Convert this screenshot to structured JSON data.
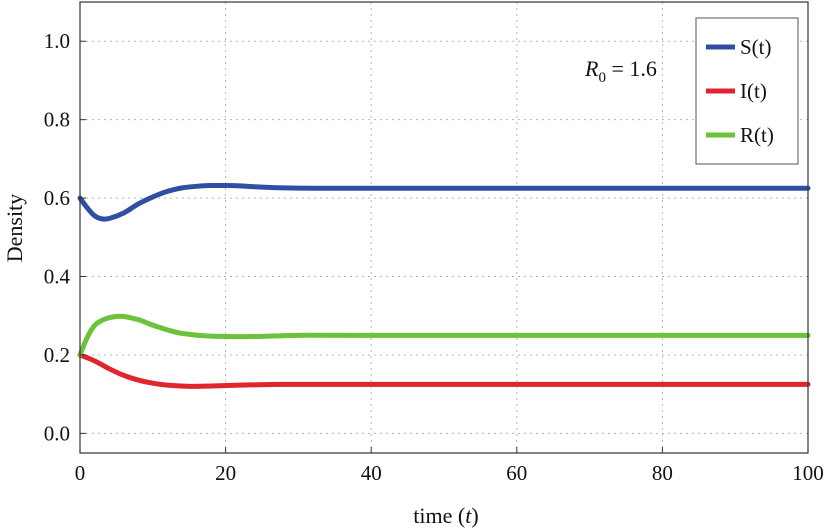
{
  "chart_data": {
    "type": "line",
    "xlabel_main": "time",
    "xlabel_var": "t",
    "ylabel": "Density",
    "xlim": [
      0,
      100
    ],
    "ylim": [
      -0.05,
      1.1
    ],
    "x_ticks": [
      0,
      20,
      40,
      60,
      80,
      100
    ],
    "y_ticks": [
      0.0,
      0.2,
      0.4,
      0.6,
      0.8,
      1.0
    ],
    "y_tick_labels": [
      "0.0",
      "0.2",
      "0.4",
      "0.6",
      "0.8",
      "1.0"
    ],
    "grid": true,
    "legend_position": "top-right",
    "annotation": {
      "symbol": "R",
      "subscript": "0",
      "text": " = 1.6"
    },
    "series": [
      {
        "name": "S(t)",
        "color": "#2f4fa2",
        "points": [
          [
            0,
            0.6
          ],
          [
            1,
            0.575
          ],
          [
            2,
            0.555
          ],
          [
            3,
            0.547
          ],
          [
            4,
            0.548
          ],
          [
            6,
            0.562
          ],
          [
            8,
            0.585
          ],
          [
            10,
            0.603
          ],
          [
            12,
            0.617
          ],
          [
            14,
            0.626
          ],
          [
            16,
            0.63
          ],
          [
            18,
            0.632
          ],
          [
            20,
            0.632
          ],
          [
            22,
            0.631
          ],
          [
            25,
            0.628
          ],
          [
            28,
            0.626
          ],
          [
            32,
            0.625
          ],
          [
            40,
            0.625
          ],
          [
            60,
            0.625
          ],
          [
            80,
            0.625
          ],
          [
            100,
            0.625
          ]
        ]
      },
      {
        "name": "I(t)",
        "color": "#e0252c",
        "points": [
          [
            0,
            0.2
          ],
          [
            2,
            0.185
          ],
          [
            4,
            0.165
          ],
          [
            6,
            0.148
          ],
          [
            8,
            0.136
          ],
          [
            10,
            0.128
          ],
          [
            12,
            0.123
          ],
          [
            15,
            0.12
          ],
          [
            18,
            0.121
          ],
          [
            22,
            0.123
          ],
          [
            28,
            0.125
          ],
          [
            40,
            0.125
          ],
          [
            60,
            0.125
          ],
          [
            80,
            0.125
          ],
          [
            100,
            0.125
          ]
        ]
      },
      {
        "name": "R(t)",
        "color": "#6cc23a",
        "points": [
          [
            0,
            0.2
          ],
          [
            1,
            0.245
          ],
          [
            2,
            0.275
          ],
          [
            3,
            0.288
          ],
          [
            4,
            0.295
          ],
          [
            5,
            0.298
          ],
          [
            6,
            0.298
          ],
          [
            8,
            0.29
          ],
          [
            10,
            0.276
          ],
          [
            12,
            0.264
          ],
          [
            14,
            0.255
          ],
          [
            17,
            0.249
          ],
          [
            20,
            0.247
          ],
          [
            24,
            0.247
          ],
          [
            30,
            0.25
          ],
          [
            40,
            0.25
          ],
          [
            60,
            0.25
          ],
          [
            80,
            0.25
          ],
          [
            100,
            0.25
          ]
        ]
      }
    ]
  }
}
